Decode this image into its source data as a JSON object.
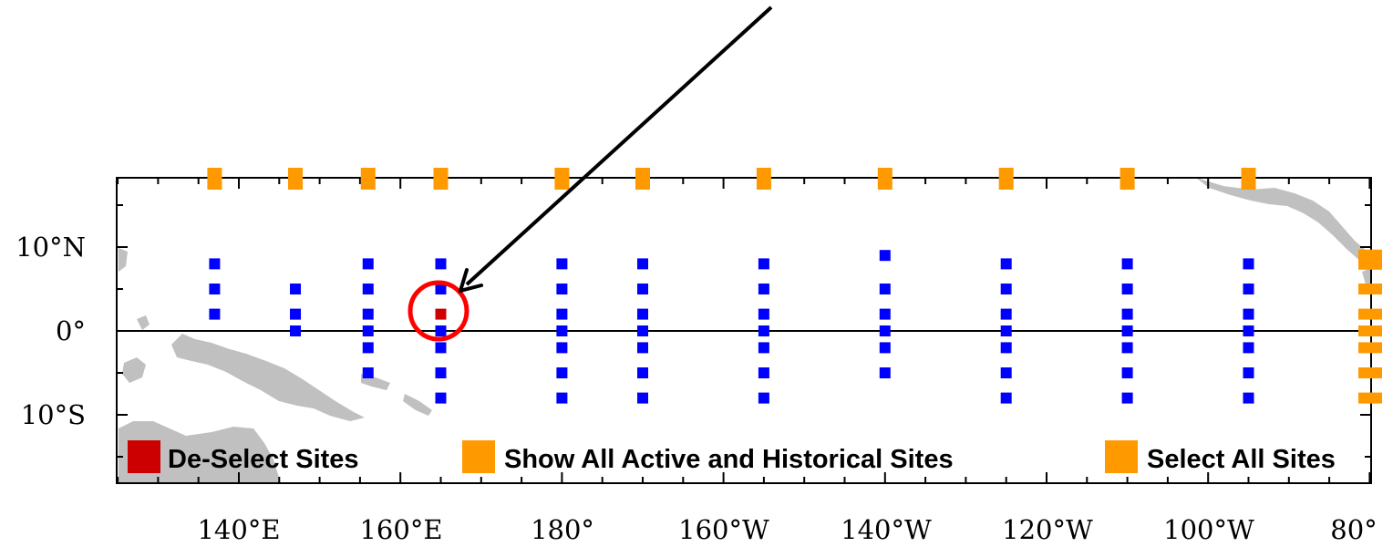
{
  "map": {
    "x_ticks": [
      "140°E",
      "160°E",
      "180°",
      "160°W",
      "140°W",
      "120°W",
      "100°W",
      "80°"
    ],
    "y_ticks": [
      "10°N",
      "0°",
      "10°S"
    ]
  },
  "legend": {
    "deselect": {
      "label": "De-Select Sites",
      "color": "#cc0000"
    },
    "show_all": {
      "label": "Show All Active and Historical Sites",
      "color": "#ff9900"
    },
    "select_all": {
      "label": "Select All Sites",
      "color": "#ff9900"
    }
  },
  "colors": {
    "site": "#0000ff",
    "selected_site": "#cc0000",
    "select_button": "#ff9900",
    "land": "#c0c0c0",
    "highlight_circle": "#ff0000",
    "arrow": "#000000"
  },
  "sites": {
    "longitudes": [
      137,
      147,
      156,
      165,
      180,
      190,
      205,
      220,
      235,
      250,
      265
    ],
    "latitudes_by_column": [
      [
        8,
        5,
        2
      ],
      [
        5,
        2,
        0
      ],
      [
        8,
        5,
        2,
        0,
        -2,
        -5
      ],
      [
        8,
        5,
        2,
        0,
        -2,
        -5,
        -8
      ],
      [
        8,
        5,
        2,
        0,
        -2,
        -5,
        -8
      ],
      [
        8,
        5,
        2,
        0,
        -2,
        -5,
        -8
      ],
      [
        8,
        5,
        2,
        0,
        -2,
        -5,
        -8
      ],
      [
        9,
        5,
        2,
        0,
        -2,
        -5
      ],
      [
        8,
        5,
        2,
        0,
        -2,
        -5,
        -8
      ],
      [
        8,
        5,
        2,
        0,
        -2,
        -5,
        -8
      ],
      [
        8,
        5,
        2,
        0,
        -2,
        -5,
        -8
      ]
    ],
    "selected": {
      "lon": 165,
      "lat": 2
    },
    "east_row_latitudes": [
      8.5,
      5,
      2,
      0,
      -2,
      -5,
      -8
    ]
  }
}
